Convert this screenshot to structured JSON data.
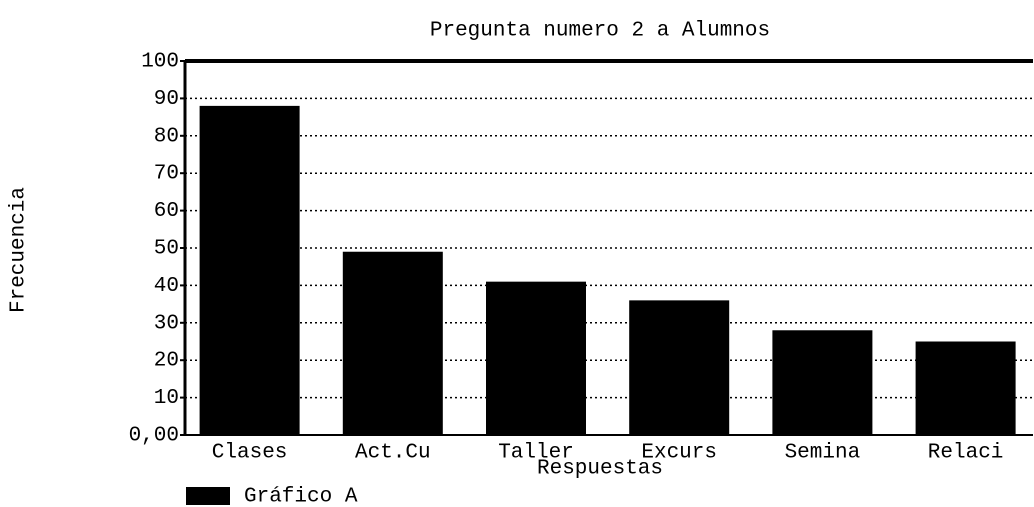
{
  "chart_data": {
    "type": "bar",
    "title": "Pregunta numero 2 a Alumnos",
    "xlabel": "Respuestas",
    "ylabel": "Frecuencia",
    "categories": [
      "Clases",
      "Act.Cu",
      "Taller",
      "Excurs",
      "Semina",
      "Relaci"
    ],
    "series": [
      {
        "name": "Gráfico A",
        "color": "#000000",
        "values": [
          88,
          49,
          41,
          36,
          28,
          25
        ]
      }
    ],
    "ylim": [
      0,
      100
    ],
    "yticks": [
      {
        "value": 0,
        "label": "0,00"
      },
      10,
      20,
      30,
      40,
      50,
      60,
      70,
      80,
      90,
      100
    ],
    "grid": true,
    "legend": "bottom-left"
  }
}
